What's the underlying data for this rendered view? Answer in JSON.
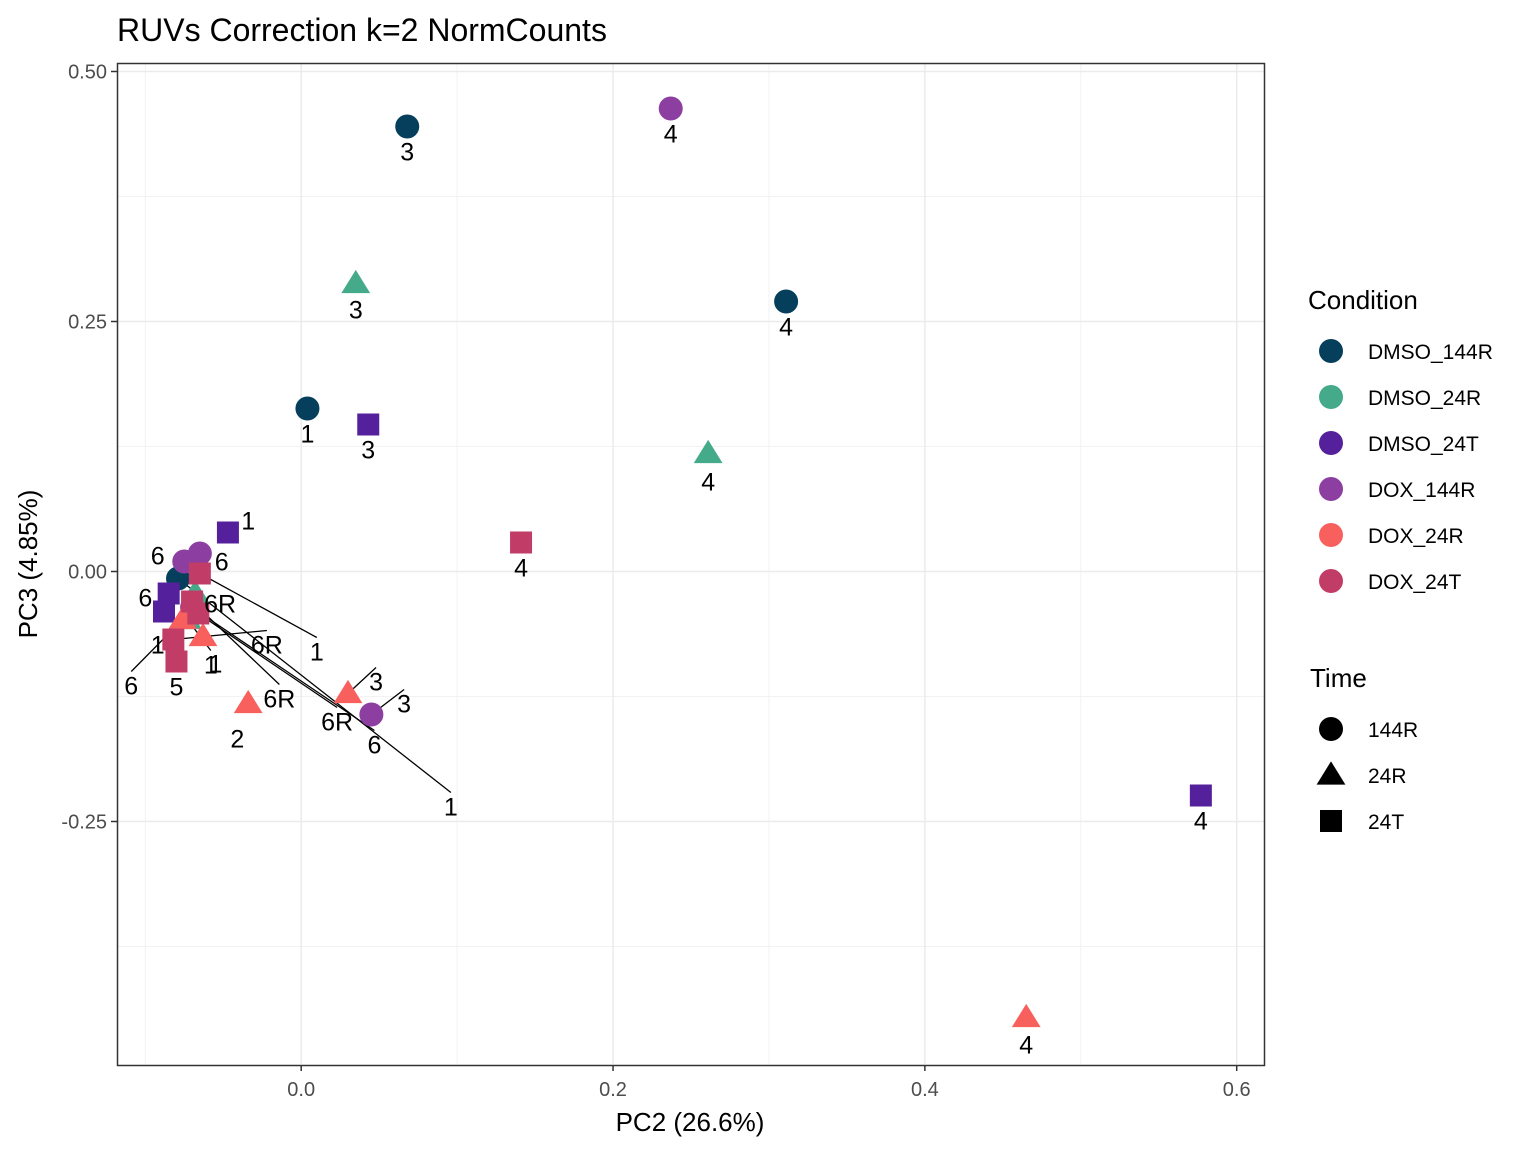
{
  "chart_data": {
    "type": "scatter",
    "title": "RUVs Correction k=2 NormCounts",
    "xlabel": "PC2 (26.6%)",
    "ylabel": "PC3 (4.85%)",
    "xlim": [
      -0.1175,
      0.6175
    ],
    "ylim": [
      -0.4925,
      0.5075
    ],
    "x_ticks": [
      0.0,
      0.2,
      0.4,
      0.6
    ],
    "x_tick_labels": [
      "0.0",
      "0.2",
      "0.4",
      "0.6"
    ],
    "y_ticks": [
      -0.25,
      0.0,
      0.25,
      0.5
    ],
    "y_tick_labels": [
      "-0.25",
      "0.00",
      "0.25",
      "0.50"
    ],
    "grid": true,
    "colors": {
      "DMSO_144R": "#053F5C",
      "DMSO_24R": "#44AA8A",
      "DMSO_24T": "#55209B",
      "DOX_144R": "#8C3FA1",
      "DOX_24R": "#F8605E",
      "DOX_24T": "#C13D68"
    },
    "legend": {
      "condition_title": "Condition",
      "conditions": [
        "DMSO_144R",
        "DMSO_24R",
        "DMSO_24T",
        "DOX_144R",
        "DOX_24R",
        "DOX_24T"
      ],
      "time_title": "Time",
      "times": [
        "144R",
        "24R",
        "24T"
      ],
      "shapes": {
        "144R": "circle",
        "24R": "triangle",
        "24T": "square"
      },
      "placement": "right"
    },
    "points": [
      {
        "x": 0.068,
        "y": 0.445,
        "condition": "DMSO_144R",
        "time": "144R",
        "label": "3",
        "lx": 0.068,
        "ly": 0.42
      },
      {
        "x": 0.004,
        "y": 0.163,
        "condition": "DMSO_144R",
        "time": "144R",
        "label": "1",
        "lx": 0.004,
        "ly": 0.138
      },
      {
        "x": 0.311,
        "y": 0.27,
        "condition": "DMSO_144R",
        "time": "144R",
        "label": "4",
        "lx": 0.311,
        "ly": 0.245
      },
      {
        "x": -0.079,
        "y": -0.007,
        "condition": "DMSO_144R",
        "time": "144R",
        "label": "1",
        "lx": 0.096,
        "ly": -0.235,
        "leader": true
      },
      {
        "x": 0.237,
        "y": 0.463,
        "condition": "DOX_144R",
        "time": "144R",
        "label": "4",
        "lx": 0.237,
        "ly": 0.438
      },
      {
        "x": 0.045,
        "y": -0.143,
        "condition": "DOX_144R",
        "time": "144R",
        "label": "3",
        "lx": 0.066,
        "ly": -0.132,
        "leader": true
      },
      {
        "x": -0.075,
        "y": 0.01,
        "condition": "DOX_144R",
        "time": "144R",
        "label": "6",
        "lx": -0.092,
        "ly": 0.016
      },
      {
        "x": -0.065,
        "y": 0.018,
        "condition": "DOX_144R",
        "time": "144R",
        "label": "6",
        "lx": -0.051,
        "ly": 0.01
      },
      {
        "x": -0.07,
        "y": -0.036,
        "condition": "DOX_144R",
        "time": "144R",
        "label": "6",
        "lx": 0.047,
        "ly": -0.173,
        "leader": true
      },
      {
        "x": 0.035,
        "y": 0.288,
        "condition": "DMSO_24R",
        "time": "24R",
        "label": "3",
        "lx": 0.035,
        "ly": 0.262
      },
      {
        "x": 0.261,
        "y": 0.118,
        "condition": "DMSO_24R",
        "time": "24R",
        "label": "4",
        "lx": 0.261,
        "ly": 0.09
      },
      {
        "x": -0.073,
        "y": -0.048,
        "condition": "DMSO_24R",
        "time": "24R",
        "label": "1",
        "lx": -0.058,
        "ly": -0.093,
        "leader": true
      },
      {
        "x": -0.068,
        "y": -0.022,
        "condition": "DMSO_24R",
        "time": "24R",
        "label": "6R",
        "lx": -0.052,
        "ly": -0.032
      },
      {
        "x": 0.043,
        "y": 0.147,
        "condition": "DMSO_24T",
        "time": "24T",
        "label": "3",
        "lx": 0.043,
        "ly": 0.122
      },
      {
        "x": 0.577,
        "y": -0.224,
        "condition": "DMSO_24T",
        "time": "24T",
        "label": "4",
        "lx": 0.577,
        "ly": -0.249
      },
      {
        "x": -0.047,
        "y": 0.039,
        "condition": "DMSO_24T",
        "time": "24T",
        "label": "1",
        "lx": -0.034,
        "ly": 0.051
      },
      {
        "x": -0.085,
        "y": -0.022,
        "condition": "DMSO_24T",
        "time": "24T",
        "label": "6",
        "lx": -0.1,
        "ly": -0.026
      },
      {
        "x": -0.088,
        "y": -0.04,
        "condition": "DMSO_24T",
        "time": "24T",
        "label": "1",
        "lx": -0.092,
        "ly": -0.073
      },
      {
        "x": 0.465,
        "y": -0.446,
        "condition": "DOX_24R",
        "time": "24R",
        "label": "4",
        "lx": 0.465,
        "ly": -0.473
      },
      {
        "x": 0.03,
        "y": -0.122,
        "condition": "DOX_24R",
        "time": "24R",
        "label": "3",
        "lx": 0.048,
        "ly": -0.11,
        "leader": true
      },
      {
        "x": -0.034,
        "y": -0.132,
        "condition": "DOX_24R",
        "time": "24R",
        "label": "2",
        "lx": -0.041,
        "ly": -0.167
      },
      {
        "x": -0.063,
        "y": -0.065,
        "condition": "DOX_24R",
        "time": "24R",
        "label": "1",
        "lx": -0.055,
        "ly": -0.092
      },
      {
        "x": -0.076,
        "y": -0.048,
        "condition": "DOX_24R",
        "time": "24R",
        "label": "6",
        "lx": -0.109,
        "ly": -0.114,
        "leader": true
      },
      {
        "x": 0.141,
        "y": 0.029,
        "condition": "DOX_24T",
        "time": "24T",
        "label": "4",
        "lx": 0.141,
        "ly": 0.004
      },
      {
        "x": -0.08,
        "y": -0.09,
        "condition": "DOX_24T",
        "time": "24T",
        "label": "5",
        "lx": -0.08,
        "ly": -0.115,
        "leader": true
      },
      {
        "x": -0.082,
        "y": -0.068,
        "condition": "DOX_24T",
        "time": "24T",
        "label": "6R",
        "lx": -0.022,
        "ly": -0.073,
        "leader": true
      },
      {
        "x": -0.065,
        "y": -0.002,
        "condition": "DOX_24T",
        "time": "24T",
        "label": "1",
        "lx": 0.01,
        "ly": -0.08,
        "leader": true
      },
      {
        "x": -0.07,
        "y": -0.03,
        "condition": "DOX_24T",
        "time": "24T",
        "label": "6R",
        "lx": -0.014,
        "ly": -0.127,
        "leader": true
      },
      {
        "x": -0.066,
        "y": -0.042,
        "condition": "DOX_24T",
        "time": "24T",
        "label": "6R",
        "lx": 0.023,
        "ly": -0.15,
        "leader": true
      }
    ]
  }
}
